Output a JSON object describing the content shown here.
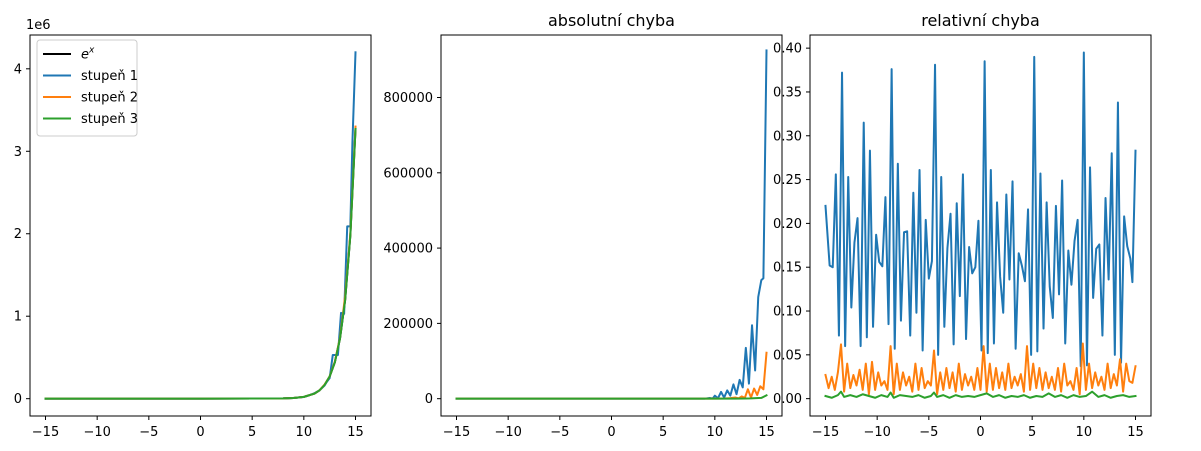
{
  "chart_data": [
    {
      "type": "line",
      "title": "",
      "offset_label": "1e6",
      "xlim": [
        -16.5,
        16.5
      ],
      "ylim": [
        -0.21,
        4.41
      ],
      "x_ticks": [
        -15,
        -10,
        -5,
        0,
        5,
        10,
        15
      ],
      "x_tick_labels": [
        "−15",
        "−10",
        "−5",
        "0",
        "5",
        "10",
        "15"
      ],
      "y_ticks": [
        0,
        1,
        2,
        3,
        4
      ],
      "y_tick_labels": [
        "0",
        "1",
        "2",
        "3",
        "4"
      ],
      "legend": {
        "placement": "upper left",
        "entries": [
          {
            "name": "e",
            "superscript": "x",
            "color": "#000000"
          },
          {
            "name": "stupeň 1",
            "color": "#1f77b4"
          },
          {
            "name": "stupeň 2",
            "color": "#ff7f0e"
          },
          {
            "name": "stupeň 3",
            "color": "#2ca02c"
          }
        ]
      },
      "series": [
        {
          "name": "e^x",
          "color": "#000000",
          "x": [
            -15,
            0,
            8,
            9,
            10,
            11,
            11.5,
            12,
            12.5,
            13,
            13.5,
            14,
            14.5,
            15
          ],
          "values": [
            0,
            0,
            0.003,
            0.008,
            0.022,
            0.06,
            0.099,
            0.163,
            0.268,
            0.442,
            0.729,
            1.2,
            1.98,
            3.27
          ]
        },
        {
          "name": "stupeň 1",
          "color": "#1f77b4",
          "x": [
            -15,
            0,
            8,
            9,
            10,
            10.5,
            11,
            11.5,
            12,
            12.2,
            12.5,
            12.8,
            13,
            13.3,
            13.6,
            13.9,
            14.2,
            14.5,
            14.7,
            15
          ],
          "values": [
            0,
            0,
            0.003,
            0.008,
            0.02,
            0.04,
            0.065,
            0.1,
            0.16,
            0.2,
            0.25,
            0.53,
            0.53,
            0.53,
            1.04,
            1.03,
            2.09,
            2.09,
            3.1,
            4.2
          ]
        },
        {
          "name": "stupeň 2",
          "color": "#ff7f0e",
          "x": [
            -15,
            0,
            8,
            9,
            10,
            11,
            11.5,
            12,
            12.5,
            13,
            13.5,
            14,
            14.5,
            15
          ],
          "values": [
            0,
            0,
            0.003,
            0.008,
            0.022,
            0.06,
            0.1,
            0.17,
            0.27,
            0.45,
            0.74,
            1.25,
            2.0,
            3.3
          ]
        },
        {
          "name": "stupeň 3",
          "color": "#2ca02c",
          "x": [
            -15,
            0,
            8,
            9,
            10,
            11,
            11.5,
            12,
            12.5,
            13,
            13.5,
            14,
            14.5,
            15
          ],
          "values": [
            0,
            0,
            0.003,
            0.008,
            0.022,
            0.06,
            0.1,
            0.165,
            0.27,
            0.44,
            0.73,
            1.2,
            1.98,
            3.27
          ]
        }
      ]
    },
    {
      "type": "line",
      "title": "absolutní chyba",
      "xlim": [
        -16.5,
        16.5
      ],
      "ylim": [
        -46000,
        966000
      ],
      "x_ticks": [
        -15,
        -10,
        -5,
        0,
        5,
        10,
        15
      ],
      "x_tick_labels": [
        "−15",
        "−10",
        "−5",
        "0",
        "5",
        "10",
        "15"
      ],
      "y_ticks": [
        0,
        200000,
        400000,
        600000,
        800000
      ],
      "y_tick_labels": [
        "0",
        "200000",
        "400000",
        "600000",
        "800000"
      ],
      "series": [
        {
          "name": "stupeň 1",
          "color": "#1f77b4",
          "x": [
            -15,
            0,
            9,
            9.5,
            9.8,
            10.0,
            10.3,
            10.6,
            10.9,
            11.2,
            11.5,
            11.8,
            12.1,
            12.4,
            12.7,
            13.0,
            13.3,
            13.6,
            13.9,
            14.2,
            14.5,
            14.7,
            15
          ],
          "values": [
            0,
            0,
            0,
            2000,
            500,
            8000,
            1000,
            18000,
            3000,
            22000,
            8000,
            38000,
            12000,
            50000,
            30000,
            135000,
            40000,
            195000,
            75000,
            270000,
            315000,
            320000,
            925000
          ]
        },
        {
          "name": "stupeň 2",
          "color": "#ff7f0e",
          "x": [
            -15,
            0,
            10,
            11,
            11.5,
            12,
            12.3,
            12.6,
            12.9,
            13.2,
            13.5,
            13.8,
            14.1,
            14.4,
            14.7,
            15
          ],
          "values": [
            0,
            0,
            100,
            500,
            1500,
            3000,
            1000,
            6000,
            2000,
            25000,
            3000,
            27000,
            10000,
            33000,
            25000,
            122000
          ]
        },
        {
          "name": "stupeň 3",
          "color": "#2ca02c",
          "x": [
            -15,
            0,
            12,
            13,
            13.5,
            14,
            14.5,
            15
          ],
          "values": [
            0,
            0,
            100,
            500,
            800,
            1500,
            2000,
            9000
          ]
        }
      ]
    },
    {
      "type": "line",
      "title": "relativní chyba",
      "xlim": [
        -16.5,
        16.5
      ],
      "ylim": [
        -0.0198,
        0.415
      ],
      "x_ticks": [
        -15,
        -10,
        -5,
        0,
        5,
        10,
        15
      ],
      "x_tick_labels": [
        "−15",
        "−10",
        "−5",
        "0",
        "5",
        "10",
        "15"
      ],
      "y_ticks": [
        0.0,
        0.05,
        0.1,
        0.15,
        0.2,
        0.25,
        0.3,
        0.35,
        0.4
      ],
      "y_tick_labels": [
        "0.00",
        "0.05",
        "0.10",
        "0.15",
        "0.20",
        "0.25",
        "0.30",
        "0.35",
        "0.40"
      ],
      "series": [
        {
          "name": "stupeň 1",
          "color": "#1f77b4",
          "x": [
            -15.0,
            -14.6,
            -14.3,
            -14.0,
            -13.7,
            -13.4,
            -13.1,
            -12.8,
            -12.5,
            -12.2,
            -11.9,
            -11.6,
            -11.3,
            -11.0,
            -10.7,
            -10.4,
            -10.1,
            -9.8,
            -9.5,
            -9.2,
            -8.9,
            -8.6,
            -8.3,
            -8.0,
            -7.7,
            -7.4,
            -7.1,
            -6.8,
            -6.5,
            -6.2,
            -5.9,
            -5.6,
            -5.3,
            -5.0,
            -4.7,
            -4.4,
            -4.1,
            -3.8,
            -3.5,
            -3.2,
            -2.9,
            -2.6,
            -2.3,
            -2.0,
            -1.7,
            -1.4,
            -1.1,
            -0.8,
            -0.5,
            -0.2,
            0.1,
            0.4,
            0.7,
            1.0,
            1.3,
            1.6,
            1.9,
            2.2,
            2.5,
            2.8,
            3.1,
            3.4,
            3.7,
            4.0,
            4.3,
            4.6,
            4.9,
            5.2,
            5.5,
            5.8,
            6.1,
            6.4,
            6.7,
            7.0,
            7.3,
            7.6,
            7.9,
            8.2,
            8.5,
            8.8,
            9.1,
            9.4,
            9.7,
            10.0,
            10.3,
            10.6,
            10.9,
            11.2,
            11.5,
            11.8,
            12.1,
            12.4,
            12.7,
            13.0,
            13.3,
            13.6,
            13.9,
            14.2,
            14.5,
            14.7,
            15.0
          ],
          "values": [
            0.22,
            0.152,
            0.15,
            0.256,
            0.072,
            0.372,
            0.06,
            0.253,
            0.104,
            0.178,
            0.206,
            0.06,
            0.315,
            0.07,
            0.283,
            0.082,
            0.187,
            0.156,
            0.151,
            0.23,
            0.085,
            0.376,
            0.057,
            0.268,
            0.089,
            0.19,
            0.191,
            0.072,
            0.235,
            0.098,
            0.261,
            0.055,
            0.204,
            0.137,
            0.157,
            0.381,
            0.05,
            0.253,
            0.082,
            0.172,
            0.211,
            0.062,
            0.223,
            0.117,
            0.256,
            0.068,
            0.173,
            0.143,
            0.15,
            0.203,
            0.055,
            0.385,
            0.052,
            0.261,
            0.063,
            0.224,
            0.139,
            0.098,
            0.233,
            0.136,
            0.248,
            0.057,
            0.166,
            0.152,
            0.134,
            0.216,
            0.05,
            0.39,
            0.054,
            0.257,
            0.08,
            0.224,
            0.128,
            0.092,
            0.22,
            0.119,
            0.249,
            0.063,
            0.169,
            0.13,
            0.18,
            0.204,
            0.037,
            0.395,
            0.038,
            0.264,
            0.115,
            0.171,
            0.176,
            0.072,
            0.229,
            0.136,
            0.28,
            0.05,
            0.338,
            0.041,
            0.208,
            0.174,
            0.16,
            0.133,
            0.283
          ]
        },
        {
          "name": "stupeň 2",
          "color": "#ff7f0e",
          "x": [
            -15.0,
            -14.7,
            -14.4,
            -14.1,
            -13.8,
            -13.5,
            -13.2,
            -12.9,
            -12.6,
            -12.3,
            -12.0,
            -11.7,
            -11.4,
            -11.1,
            -10.8,
            -10.5,
            -10.2,
            -9.9,
            -9.6,
            -9.3,
            -9.0,
            -8.7,
            -8.4,
            -8.1,
            -7.8,
            -7.5,
            -7.2,
            -6.9,
            -6.6,
            -6.3,
            -6.0,
            -5.7,
            -5.4,
            -5.1,
            -4.8,
            -4.5,
            -4.2,
            -3.9,
            -3.6,
            -3.3,
            -3.0,
            -2.7,
            -2.4,
            -2.1,
            -1.8,
            -1.5,
            -1.2,
            -0.9,
            -0.6,
            -0.3,
            0.0,
            0.3,
            0.6,
            0.9,
            1.2,
            1.5,
            1.8,
            2.1,
            2.4,
            2.7,
            3.0,
            3.3,
            3.6,
            3.9,
            4.2,
            4.5,
            4.8,
            5.1,
            5.4,
            5.7,
            6.0,
            6.3,
            6.6,
            6.9,
            7.2,
            7.5,
            7.8,
            8.1,
            8.4,
            8.7,
            9.0,
            9.3,
            9.6,
            9.9,
            10.2,
            10.5,
            10.8,
            11.1,
            11.4,
            11.7,
            12.0,
            12.3,
            12.6,
            12.9,
            13.2,
            13.5,
            13.8,
            14.1,
            14.4,
            14.7,
            15.0
          ],
          "values": [
            0.027,
            0.012,
            0.025,
            0.01,
            0.03,
            0.062,
            0.008,
            0.04,
            0.012,
            0.027,
            0.015,
            0.033,
            0.01,
            0.04,
            0.005,
            0.042,
            0.01,
            0.03,
            0.015,
            0.02,
            0.01,
            0.06,
            0.005,
            0.04,
            0.01,
            0.03,
            0.015,
            0.025,
            0.008,
            0.04,
            0.01,
            0.035,
            0.012,
            0.02,
            0.015,
            0.055,
            0.005,
            0.03,
            0.01,
            0.035,
            0.012,
            0.03,
            0.008,
            0.04,
            0.01,
            0.028,
            0.015,
            0.025,
            0.01,
            0.035,
            0.01,
            0.06,
            0.008,
            0.04,
            0.01,
            0.035,
            0.012,
            0.03,
            0.01,
            0.04,
            0.012,
            0.025,
            0.015,
            0.028,
            0.008,
            0.06,
            0.01,
            0.04,
            0.012,
            0.035,
            0.01,
            0.03,
            0.012,
            0.025,
            0.01,
            0.035,
            0.008,
            0.04,
            0.015,
            0.02,
            0.01,
            0.035,
            0.005,
            0.063,
            0.01,
            0.04,
            0.012,
            0.03,
            0.015,
            0.025,
            0.01,
            0.04,
            0.012,
            0.028,
            0.015,
            0.045,
            0.008,
            0.04,
            0.02,
            0.018,
            0.037
          ]
        },
        {
          "name": "stupeň 3",
          "color": "#2ca02c",
          "x": [
            -15.0,
            -14.4,
            -13.8,
            -13.5,
            -13.2,
            -12.6,
            -12.0,
            -11.4,
            -10.8,
            -10.2,
            -9.6,
            -9.0,
            -8.7,
            -8.4,
            -7.8,
            -7.2,
            -6.6,
            -6.0,
            -5.4,
            -4.8,
            -4.5,
            -4.2,
            -3.6,
            -3.0,
            -2.4,
            -1.8,
            -1.2,
            -0.6,
            0.0,
            0.6,
            1.2,
            1.8,
            2.4,
            3.0,
            3.6,
            4.2,
            4.8,
            5.4,
            6.0,
            6.6,
            7.2,
            7.8,
            8.4,
            9.0,
            9.6,
            10.2,
            10.8,
            11.4,
            12.0,
            12.6,
            13.2,
            13.8,
            14.4,
            15.0
          ],
          "values": [
            0.003,
            0.001,
            0.004,
            0.008,
            0.002,
            0.004,
            0.002,
            0.005,
            0.003,
            0.001,
            0.004,
            0.002,
            0.007,
            0.001,
            0.004,
            0.003,
            0.002,
            0.004,
            0.001,
            0.003,
            0.007,
            0.002,
            0.004,
            0.001,
            0.004,
            0.002,
            0.003,
            0.002,
            0.004,
            0.006,
            0.002,
            0.004,
            0.001,
            0.003,
            0.002,
            0.004,
            0.001,
            0.003,
            0.002,
            0.006,
            0.002,
            0.004,
            0.001,
            0.004,
            0.002,
            0.003,
            0.008,
            0.002,
            0.004,
            0.001,
            0.003,
            0.004,
            0.002,
            0.003
          ]
        }
      ]
    }
  ]
}
